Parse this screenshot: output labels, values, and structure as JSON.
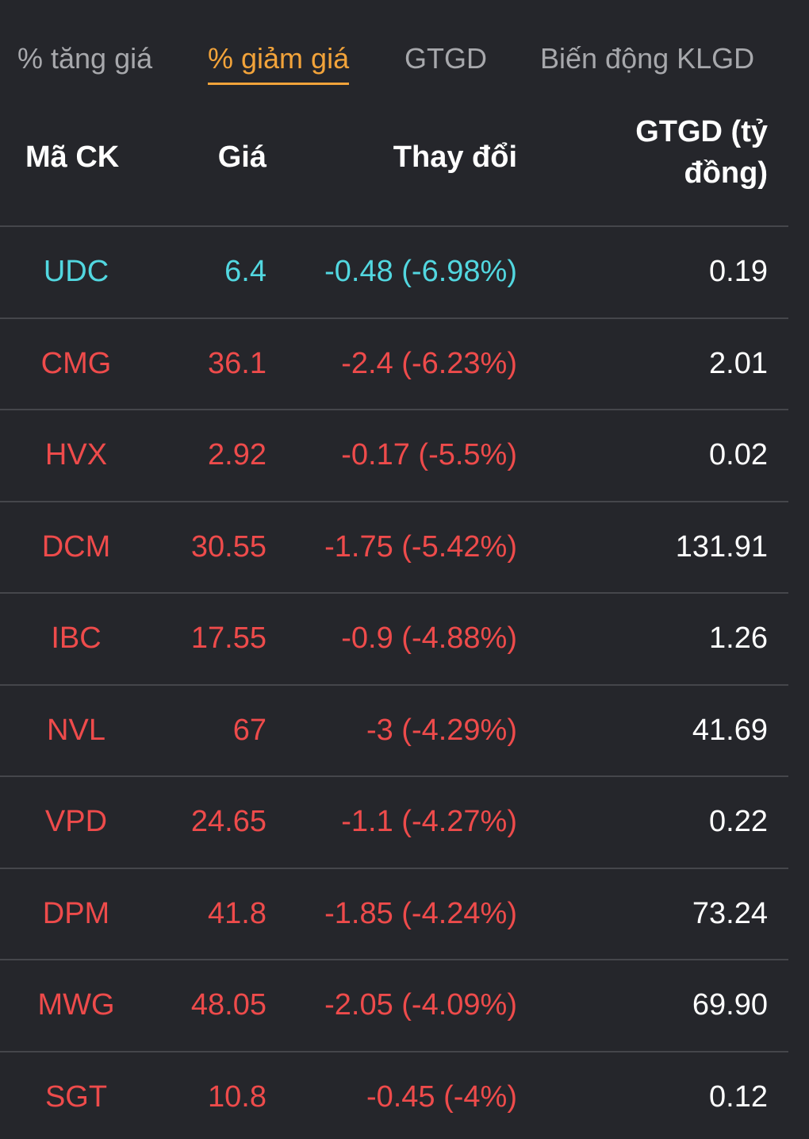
{
  "tabs": [
    {
      "label": "% tăng giá",
      "active": false
    },
    {
      "label": "% giảm giá",
      "active": true
    },
    {
      "label": "GTGD",
      "active": false
    },
    {
      "label": "Biến động KLGD",
      "active": false
    }
  ],
  "table": {
    "headers": {
      "symbol": "Mã CK",
      "price": "Giá",
      "change": "Thay đổi",
      "value": "GTGD (tỷ đồng)"
    },
    "colors": {
      "floor": "#52d7e0",
      "down": "#ee4b4b",
      "value": "#ffffff",
      "active_tab": "#f2a33a"
    },
    "rows": [
      {
        "symbol": "UDC",
        "price": "6.4",
        "change": "-0.48 (-6.98%)",
        "value": "0.19",
        "status": "floor"
      },
      {
        "symbol": "CMG",
        "price": "36.1",
        "change": "-2.4 (-6.23%)",
        "value": "2.01",
        "status": "down"
      },
      {
        "symbol": "HVX",
        "price": "2.92",
        "change": "-0.17 (-5.5%)",
        "value": "0.02",
        "status": "down"
      },
      {
        "symbol": "DCM",
        "price": "30.55",
        "change": "-1.75 (-5.42%)",
        "value": "131.91",
        "status": "down"
      },
      {
        "symbol": "IBC",
        "price": "17.55",
        "change": "-0.9 (-4.88%)",
        "value": "1.26",
        "status": "down"
      },
      {
        "symbol": "NVL",
        "price": "67",
        "change": "-3 (-4.29%)",
        "value": "41.69",
        "status": "down"
      },
      {
        "symbol": "VPD",
        "price": "24.65",
        "change": "-1.1 (-4.27%)",
        "value": "0.22",
        "status": "down"
      },
      {
        "symbol": "DPM",
        "price": "41.8",
        "change": "-1.85 (-4.24%)",
        "value": "73.24",
        "status": "down"
      },
      {
        "symbol": "MWG",
        "price": "48.05",
        "change": "-2.05 (-4.09%)",
        "value": "69.90",
        "status": "down"
      },
      {
        "symbol": "SGT",
        "price": "10.8",
        "change": "-0.45 (-4%)",
        "value": "0.12",
        "status": "down"
      }
    ]
  }
}
